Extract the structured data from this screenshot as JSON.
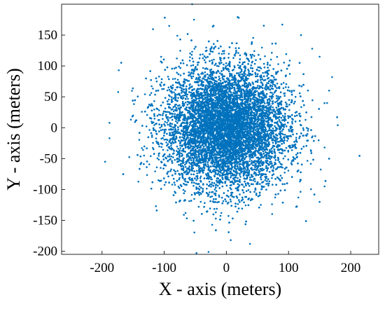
{
  "chart_data": {
    "type": "scatter",
    "title": "",
    "xlabel": "X - axis (meters)",
    "ylabel": "Y - axis (meters)",
    "xlim": [
      -265,
      245
    ],
    "ylim": [
      -205,
      200
    ],
    "xticks": [
      -200,
      -100,
      0,
      100,
      200
    ],
    "yticks": [
      -200,
      -150,
      -100,
      -50,
      0,
      50,
      100,
      150
    ],
    "xtick_labels": [
      "-200",
      "-100",
      "0",
      "100",
      "200"
    ],
    "ytick_labels": [
      "-200",
      "-150",
      "-100",
      "-50",
      "0",
      "50",
      "100",
      "150"
    ],
    "grid": false,
    "legend": "none",
    "marker_color": "#0072BD",
    "distribution": {
      "kind": "approximately circular Gaussian cloud",
      "center": [
        0,
        0
      ],
      "std_x": 50,
      "std_y": 50,
      "approx_point_count": 10000
    },
    "notable_points": [
      {
        "x": -195,
        "y": -55
      },
      {
        "x": -188,
        "y": -17
      },
      {
        "x": -173,
        "y": 93
      },
      {
        "x": -92,
        "y": 165
      },
      {
        "x": -55,
        "y": 200
      },
      {
        "x": -52,
        "y": 175
      },
      {
        "x": -48,
        "y": -203
      },
      {
        "x": 7,
        "y": -182
      },
      {
        "x": 20,
        "y": 178
      },
      {
        "x": 38,
        "y": -188
      },
      {
        "x": 90,
        "y": 167
      },
      {
        "x": 120,
        "y": 150
      },
      {
        "x": 138,
        "y": 128
      },
      {
        "x": 150,
        "y": 115
      },
      {
        "x": 170,
        "y": 82
      },
      {
        "x": 162,
        "y": 40
      },
      {
        "x": 158,
        "y": -32
      },
      {
        "x": 158,
        "y": -95
      },
      {
        "x": 150,
        "y": -120
      }
    ]
  }
}
